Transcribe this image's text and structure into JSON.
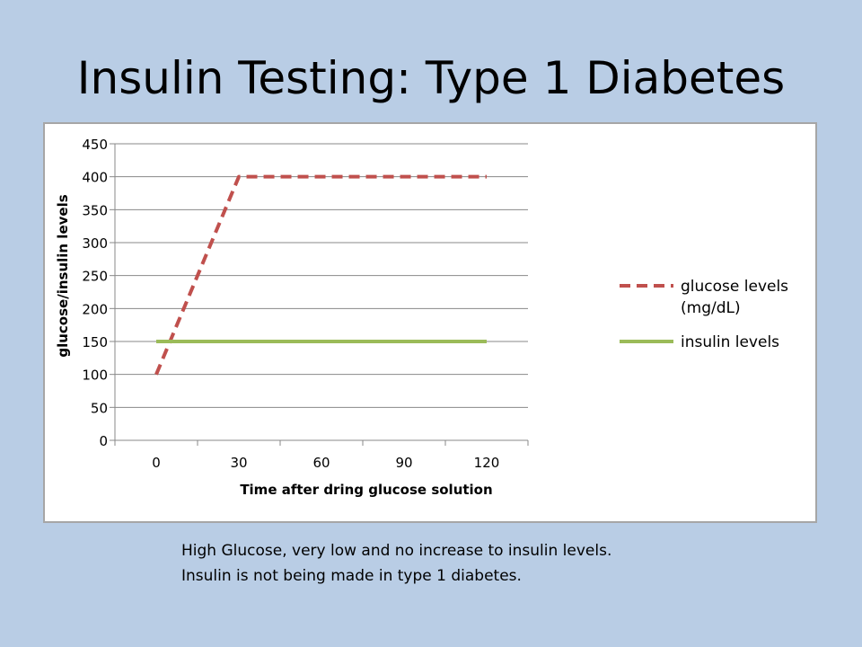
{
  "slide": {
    "title": "Insulin Testing:  Type 1 Diabetes",
    "caption": "High Glucose, very low and no increase to insulin levels.  Insulin is not being made in type 1 diabetes."
  },
  "colors": {
    "background": "#b9cde5",
    "glucose": "#c0504d",
    "insulin": "#9bbb59",
    "grid": "#888888"
  },
  "chart_data": {
    "type": "line",
    "x": [
      0,
      30,
      60,
      90,
      120
    ],
    "x_tick_labels": [
      "0",
      "30",
      "60",
      "90",
      "120"
    ],
    "y_tick_labels": [
      "0",
      "50",
      "100",
      "150",
      "200",
      "250",
      "300",
      "350",
      "400",
      "450"
    ],
    "xlabel": "Time after dring glucose solution",
    "ylabel": "glucose/insulin levels",
    "ylim": [
      0,
      450
    ],
    "grid": true,
    "legend_position": "right",
    "series": [
      {
        "name": "glucose levels (mg/dL)",
        "legend_lines": [
          "glucose levels",
          "(mg/dL)"
        ],
        "style": "dashed",
        "color": "#c0504d",
        "values": [
          100,
          400,
          400,
          400,
          400
        ]
      },
      {
        "name": "insulin levels",
        "legend_lines": [
          "insulin levels"
        ],
        "style": "solid",
        "color": "#9bbb59",
        "values": [
          150,
          150,
          150,
          150,
          150
        ]
      }
    ]
  }
}
